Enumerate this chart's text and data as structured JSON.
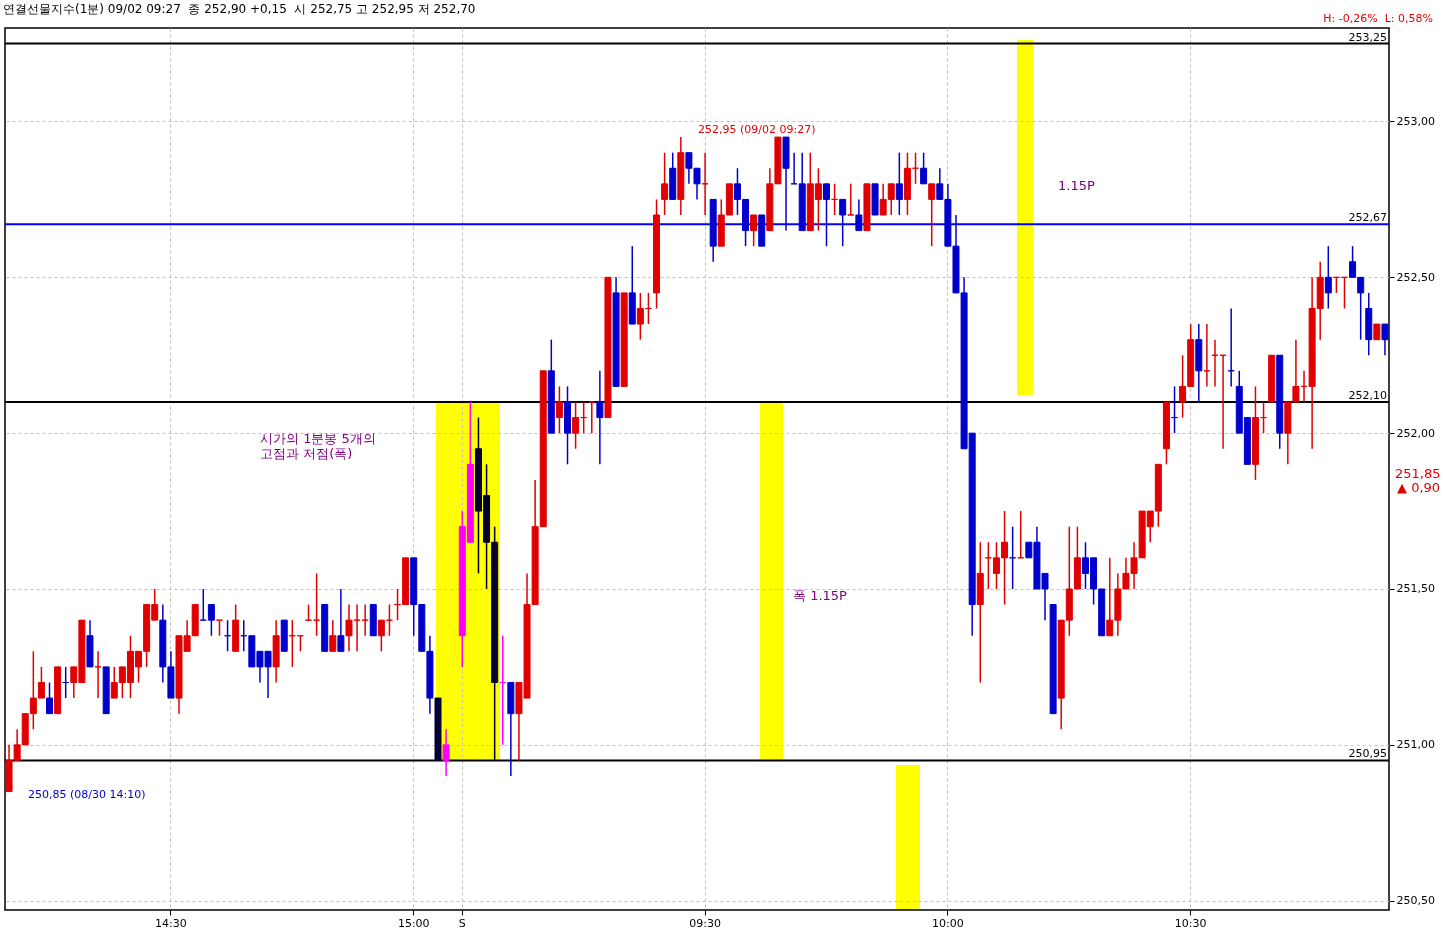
{
  "chart_data": {
    "type": "candlestick",
    "title": "연결선물지수(1분) 09/02 09:27  종 252,90 +0,15  시 252,75 고 252,95 저 252,70",
    "subtitle": "H: -0,26%  L: 0,58%",
    "categories": [
      null,
      null,
      null,
      null,
      null,
      null,
      null,
      null,
      null,
      null,
      null,
      null,
      null,
      null,
      null,
      null,
      null,
      null,
      null,
      null,
      "14:30",
      null,
      null,
      null,
      null,
      null,
      null,
      null,
      null,
      null,
      null,
      null,
      null,
      null,
      null,
      null,
      null,
      null,
      null,
      null,
      null,
      null,
      null,
      null,
      null,
      null,
      null,
      null,
      null,
      null,
      "15:00",
      null,
      null,
      null,
      null,
      null,
      "S",
      null,
      null,
      null,
      null,
      null,
      null,
      null,
      null,
      null,
      null,
      null,
      null,
      null,
      null,
      null,
      null,
      null,
      null,
      null,
      null,
      null,
      null,
      null,
      null,
      null,
      null,
      null,
      null,
      null,
      "09:30",
      null,
      null,
      null,
      null,
      null,
      null,
      null,
      null,
      null,
      null,
      null,
      null,
      null,
      null,
      null,
      null,
      null,
      null,
      null,
      null,
      null,
      null,
      null,
      null,
      null,
      null,
      null,
      null,
      null,
      "10:00",
      null,
      null,
      null,
      null,
      null,
      null,
      null,
      null,
      null,
      null,
      null,
      null,
      null,
      null,
      null,
      null,
      null,
      null,
      null,
      null,
      null,
      null,
      null,
      null,
      null,
      null,
      null,
      null,
      null,
      "10:30",
      null,
      null,
      null,
      null,
      null,
      null,
      null,
      null,
      null,
      null,
      null,
      null,
      null,
      null,
      null,
      null,
      null,
      null,
      null,
      null,
      null,
      null,
      null,
      null
    ],
    "ohlc": [
      [
        250.85,
        251.0,
        250.85,
        250.95
      ],
      [
        250.95,
        251.05,
        250.95,
        251.0
      ],
      [
        251.0,
        251.1,
        251.0,
        251.1
      ],
      [
        251.1,
        251.3,
        251.05,
        251.15
      ],
      [
        251.15,
        251.25,
        251.15,
        251.2
      ],
      [
        251.15,
        251.2,
        251.1,
        251.1
      ],
      [
        251.1,
        251.25,
        251.1,
        251.25
      ],
      [
        251.2,
        251.25,
        251.15,
        251.2
      ],
      [
        251.2,
        251.25,
        251.15,
        251.25
      ],
      [
        251.2,
        251.4,
        251.2,
        251.4
      ],
      [
        251.35,
        251.4,
        251.25,
        251.25
      ],
      [
        251.25,
        251.3,
        251.15,
        251.25
      ],
      [
        251.25,
        251.25,
        251.1,
        251.1
      ],
      [
        251.15,
        251.25,
        251.15,
        251.2
      ],
      [
        251.2,
        251.25,
        251.15,
        251.25
      ],
      [
        251.2,
        251.35,
        251.15,
        251.3
      ],
      [
        251.25,
        251.3,
        251.2,
        251.3
      ],
      [
        251.3,
        251.45,
        251.25,
        251.45
      ],
      [
        251.4,
        251.5,
        251.4,
        251.45
      ],
      [
        251.4,
        251.45,
        251.2,
        251.25
      ],
      [
        251.25,
        251.3,
        251.15,
        251.15
      ],
      [
        251.15,
        251.35,
        251.1,
        251.35
      ],
      [
        251.3,
        251.4,
        251.3,
        251.35
      ],
      [
        251.35,
        251.45,
        251.35,
        251.45
      ],
      [
        251.4,
        251.5,
        251.4,
        251.4
      ],
      [
        251.45,
        251.45,
        251.35,
        251.4
      ],
      [
        251.4,
        251.4,
        251.35,
        251.4
      ],
      [
        251.35,
        251.4,
        251.3,
        251.35
      ],
      [
        251.3,
        251.45,
        251.3,
        251.4
      ],
      [
        251.35,
        251.4,
        251.3,
        251.35
      ],
      [
        251.35,
        251.35,
        251.25,
        251.25
      ],
      [
        251.3,
        251.3,
        251.2,
        251.25
      ],
      [
        251.3,
        251.3,
        251.15,
        251.25
      ],
      [
        251.25,
        251.4,
        251.2,
        251.35
      ],
      [
        251.4,
        251.4,
        251.3,
        251.3
      ],
      [
        251.35,
        251.4,
        251.25,
        251.35
      ],
      [
        251.35,
        251.35,
        251.3,
        251.35
      ],
      [
        251.4,
        251.45,
        251.4,
        251.4
      ],
      [
        251.4,
        251.55,
        251.35,
        251.4
      ],
      [
        251.45,
        251.45,
        251.3,
        251.3
      ],
      [
        251.3,
        251.4,
        251.3,
        251.35
      ],
      [
        251.35,
        251.5,
        251.3,
        251.3
      ],
      [
        251.35,
        251.45,
        251.3,
        251.4
      ],
      [
        251.4,
        251.45,
        251.3,
        251.4
      ],
      [
        251.4,
        251.45,
        251.35,
        251.4
      ],
      [
        251.45,
        251.45,
        251.35,
        251.35
      ],
      [
        251.35,
        251.4,
        251.3,
        251.4
      ],
      [
        251.4,
        251.45,
        251.35,
        251.4
      ],
      [
        251.45,
        251.5,
        251.4,
        251.45
      ],
      [
        251.45,
        251.6,
        251.45,
        251.6
      ],
      [
        251.6,
        251.6,
        251.35,
        251.45
      ],
      [
        251.45,
        251.45,
        251.3,
        251.3
      ],
      [
        251.3,
        251.35,
        251.1,
        251.15
      ],
      [
        251.15,
        251.15,
        250.95,
        250.95
      ],
      [
        250.95,
        251.05,
        250.9,
        251.0
      ],
      null,
      [
        251.35,
        251.75,
        251.25,
        251.7
      ],
      [
        251.65,
        252.1,
        251.65,
        251.9
      ],
      [
        251.95,
        252.05,
        251.55,
        251.75
      ],
      [
        251.8,
        251.9,
        251.5,
        251.65
      ],
      [
        251.65,
        251.7,
        250.95,
        251.2
      ],
      [
        251.2,
        251.35,
        251.0,
        251.2
      ],
      [
        251.2,
        251.2,
        250.9,
        251.1
      ],
      [
        251.1,
        251.2,
        250.95,
        251.2
      ],
      [
        251.15,
        251.55,
        251.15,
        251.45
      ],
      [
        251.45,
        251.85,
        251.45,
        251.7
      ],
      [
        251.7,
        252.2,
        251.7,
        252.2
      ],
      [
        252.2,
        252.3,
        252.0,
        252.0
      ],
      [
        252.05,
        252.15,
        252.0,
        252.1
      ],
      [
        252.1,
        252.15,
        251.9,
        252.0
      ],
      [
        252.0,
        252.1,
        251.95,
        252.05
      ],
      [
        252.05,
        252.1,
        252.0,
        252.05
      ],
      [
        252.1,
        252.1,
        252.0,
        252.1
      ],
      [
        252.1,
        252.2,
        251.9,
        252.05
      ],
      [
        252.05,
        252.5,
        252.05,
        252.5
      ],
      [
        252.45,
        252.5,
        252.15,
        252.15
      ],
      [
        252.15,
        252.45,
        252.15,
        252.45
      ],
      [
        252.45,
        252.6,
        252.35,
        252.35
      ],
      [
        252.35,
        252.45,
        252.3,
        252.4
      ],
      [
        252.4,
        252.45,
        252.35,
        252.4
      ],
      [
        252.45,
        252.75,
        252.4,
        252.7
      ],
      [
        252.75,
        252.9,
        252.7,
        252.8
      ],
      [
        252.85,
        252.9,
        252.75,
        252.75
      ],
      [
        252.75,
        252.95,
        252.7,
        252.9
      ],
      [
        252.9,
        252.9,
        252.8,
        252.85
      ],
      [
        252.85,
        252.85,
        252.75,
        252.8
      ],
      [
        252.8,
        252.9,
        252.7,
        252.8
      ],
      [
        252.75,
        252.75,
        252.55,
        252.6
      ],
      [
        252.6,
        252.75,
        252.6,
        252.7
      ],
      [
        252.7,
        252.8,
        252.7,
        252.8
      ],
      [
        252.8,
        252.85,
        252.7,
        252.75
      ],
      [
        252.75,
        252.75,
        252.6,
        252.65
      ],
      [
        252.65,
        252.7,
        252.6,
        252.7
      ],
      [
        252.7,
        252.7,
        252.6,
        252.6
      ],
      [
        252.65,
        252.85,
        252.65,
        252.8
      ],
      [
        252.8,
        252.95,
        252.8,
        252.95
      ],
      [
        252.95,
        252.95,
        252.65,
        252.85
      ],
      [
        252.8,
        252.9,
        252.8,
        252.8
      ],
      [
        252.8,
        252.9,
        252.65,
        252.65
      ],
      [
        252.65,
        252.9,
        252.65,
        252.8
      ],
      [
        252.75,
        252.85,
        252.65,
        252.8
      ],
      [
        252.8,
        252.8,
        252.6,
        252.75
      ],
      [
        252.75,
        252.8,
        252.7,
        252.75
      ],
      [
        252.75,
        252.75,
        252.6,
        252.7
      ],
      [
        252.7,
        252.8,
        252.7,
        252.7
      ],
      [
        252.7,
        252.75,
        252.65,
        252.65
      ],
      [
        252.65,
        252.8,
        252.65,
        252.8
      ],
      [
        252.8,
        252.8,
        252.7,
        252.7
      ],
      [
        252.7,
        252.8,
        252.7,
        252.75
      ],
      [
        252.75,
        252.8,
        252.7,
        252.8
      ],
      [
        252.8,
        252.9,
        252.7,
        252.75
      ],
      [
        252.75,
        252.9,
        252.7,
        252.85
      ],
      [
        252.85,
        252.9,
        252.8,
        252.85
      ],
      [
        252.85,
        252.9,
        252.8,
        252.8
      ],
      [
        252.75,
        252.8,
        252.6,
        252.8
      ],
      [
        252.8,
        252.85,
        252.75,
        252.75
      ],
      [
        252.75,
        252.8,
        252.6,
        252.6
      ],
      [
        252.6,
        252.7,
        252.45,
        252.45
      ],
      [
        252.45,
        252.5,
        251.95,
        251.95
      ],
      [
        252.0,
        252.0,
        251.35,
        251.45
      ],
      [
        251.45,
        251.65,
        251.2,
        251.55
      ],
      [
        251.6,
        251.65,
        251.5,
        251.6
      ],
      [
        251.55,
        251.65,
        251.5,
        251.6
      ],
      [
        251.6,
        251.75,
        251.45,
        251.65
      ],
      [
        251.6,
        251.7,
        251.5,
        251.6
      ],
      [
        251.6,
        251.75,
        251.6,
        251.6
      ],
      [
        251.65,
        251.65,
        251.6,
        251.6
      ],
      [
        251.65,
        251.7,
        251.5,
        251.5
      ],
      [
        251.55,
        251.55,
        251.4,
        251.5
      ],
      [
        251.45,
        251.45,
        251.1,
        251.1
      ],
      [
        251.15,
        251.4,
        251.05,
        251.4
      ],
      [
        251.4,
        251.7,
        251.35,
        251.5
      ],
      [
        251.5,
        251.7,
        251.5,
        251.6
      ],
      [
        251.6,
        251.65,
        251.5,
        251.55
      ],
      [
        251.6,
        251.6,
        251.45,
        251.5
      ],
      [
        251.5,
        251.5,
        251.35,
        251.35
      ],
      [
        251.35,
        251.6,
        251.35,
        251.4
      ],
      [
        251.4,
        251.55,
        251.35,
        251.5
      ],
      [
        251.5,
        251.6,
        251.5,
        251.55
      ],
      [
        251.55,
        251.65,
        251.5,
        251.6
      ],
      [
        251.6,
        251.75,
        251.6,
        251.75
      ],
      [
        251.7,
        251.75,
        251.65,
        251.75
      ],
      [
        251.75,
        251.9,
        251.7,
        251.9
      ],
      [
        251.95,
        252.1,
        251.9,
        252.1
      ],
      [
        252.05,
        252.15,
        252.0,
        252.05
      ],
      [
        252.1,
        252.25,
        252.05,
        252.15
      ],
      [
        252.15,
        252.35,
        252.15,
        252.3
      ],
      [
        252.3,
        252.35,
        252.1,
        252.2
      ],
      [
        252.2,
        252.35,
        252.15,
        252.2
      ],
      [
        252.25,
        252.3,
        252.15,
        252.25
      ],
      [
        252.25,
        252.25,
        251.95,
        252.25
      ],
      [
        252.2,
        252.4,
        252.15,
        252.2
      ],
      [
        252.15,
        252.2,
        252.0,
        252.0
      ],
      [
        252.05,
        252.05,
        251.9,
        251.9
      ],
      [
        251.9,
        252.15,
        251.85,
        252.05
      ],
      [
        252.05,
        252.1,
        252.0,
        252.05
      ],
      [
        252.1,
        252.25,
        252.1,
        252.25
      ],
      [
        252.25,
        252.25,
        251.95,
        252.0
      ],
      [
        252.0,
        252.1,
        251.9,
        252.1
      ],
      [
        252.1,
        252.3,
        252.1,
        252.15
      ],
      [
        252.15,
        252.2,
        252.1,
        252.15
      ],
      [
        252.15,
        252.5,
        251.95,
        252.4
      ],
      [
        252.4,
        252.55,
        252.3,
        252.5
      ],
      [
        252.5,
        252.6,
        252.4,
        252.45
      ],
      [
        252.5,
        252.5,
        252.45,
        252.5
      ],
      [
        252.5,
        252.5,
        252.4,
        252.5
      ],
      [
        252.55,
        252.6,
        252.5,
        252.5
      ],
      [
        252.5,
        252.5,
        252.3,
        252.45
      ],
      [
        252.4,
        252.45,
        252.25,
        252.3
      ],
      [
        252.3,
        252.35,
        252.3,
        252.35
      ],
      [
        252.35,
        252.35,
        252.25,
        252.3
      ]
    ],
    "colors": [
      "#e00000",
      "#e00000",
      "#e00000",
      "#e00000",
      "#e00000",
      "#0000cc",
      "#e00000",
      "#0000cc",
      "#e00000",
      "#e00000",
      "#0000cc",
      "#e00000",
      "#0000cc",
      "#e00000",
      "#e00000",
      "#e00000",
      "#e00000",
      "#e00000",
      "#e00000",
      "#0000cc",
      "#0000cc",
      "#e00000",
      "#e00000",
      "#e00000",
      "#0000cc",
      "#0000cc",
      "#e00000",
      "#0000cc",
      "#e00000",
      "#0000cc",
      "#0000cc",
      "#0000cc",
      "#0000cc",
      "#e00000",
      "#0000cc",
      "#e00000",
      "#e00000",
      "#e00000",
      "#e00000",
      "#0000cc",
      "#e00000",
      "#0000cc",
      "#e00000",
      "#e00000",
      "#e00000",
      "#0000cc",
      "#e00000",
      "#e00000",
      "#e00000",
      "#e00000",
      "#0000cc",
      "#0000cc",
      "#0000cc",
      "#000033",
      "#ff00ff",
      null,
      "#ff00ff",
      "#ff00ff",
      "#000033",
      "#000033",
      "#000033",
      "#ff00ff",
      "#0000cc",
      "#e00000",
      "#e00000",
      "#e00000",
      "#e00000",
      "#0000cc",
      "#e00000",
      "#0000cc",
      "#e00000",
      "#e00000",
      "#e00000",
      "#0000cc",
      "#e00000",
      "#0000cc",
      "#e00000",
      "#0000cc",
      "#e00000",
      "#e00000",
      "#e00000",
      "#e00000",
      "#0000cc",
      "#e00000",
      "#0000cc",
      "#0000cc",
      "#e00000",
      "#0000cc",
      "#e00000",
      "#e00000",
      "#0000cc",
      "#0000cc",
      "#e00000",
      "#0000cc",
      "#e00000",
      "#e00000",
      "#0000cc",
      "#0000cc",
      "#0000cc",
      "#e00000",
      "#e00000",
      "#0000cc",
      "#e00000",
      "#0000cc",
      "#e00000",
      "#0000cc",
      "#e00000",
      "#0000cc",
      "#e00000",
      "#e00000",
      "#0000cc",
      "#e00000",
      "#e00000",
      "#0000cc",
      "#e00000",
      "#0000cc",
      "#0000cc",
      "#0000cc",
      "#0000cc",
      "#0000cc",
      "#e00000",
      "#e00000",
      "#e00000",
      "#e00000",
      "#0000cc",
      "#e00000",
      "#0000cc",
      "#0000cc",
      "#0000cc",
      "#0000cc",
      "#e00000",
      "#e00000",
      "#e00000",
      "#0000cc",
      "#0000cc",
      "#0000cc",
      "#e00000",
      "#e00000",
      "#e00000",
      "#e00000",
      "#e00000",
      "#e00000",
      "#e00000",
      "#e00000",
      "#0000cc",
      "#e00000",
      "#e00000",
      "#0000cc",
      "#e00000",
      "#e00000",
      "#e00000",
      "#0000cc",
      "#0000cc",
      "#0000cc",
      "#e00000",
      "#e00000",
      "#e00000",
      "#0000cc",
      "#e00000",
      "#e00000",
      "#e00000",
      "#e00000",
      "#e00000",
      "#0000cc",
      "#e00000",
      "#e00000",
      "#0000cc",
      "#0000cc",
      "#0000cc",
      "#e00000",
      "#0000cc"
    ],
    "ylim": [
      250.47,
      253.3
    ],
    "yticks": [
      {
        "value": 250.5,
        "label": "250,50"
      },
      {
        "value": 251,
        "label": "251,00"
      },
      {
        "value": 251.5,
        "label": "251,50"
      },
      {
        "value": 252,
        "label": "252,00"
      },
      {
        "value": 252.5,
        "label": "252,50"
      },
      {
        "value": 253,
        "label": "253,00"
      }
    ],
    "ref_lines": [
      {
        "axis": "y",
        "value": 253.25,
        "label": "253,25",
        "color": "#000000"
      },
      {
        "axis": "y",
        "value": 252.67,
        "label": "252,67",
        "color": "#0000ff"
      },
      {
        "axis": "y",
        "value": 252.1,
        "label": "252,10",
        "color": "#000000"
      },
      {
        "axis": "y",
        "value": 250.95,
        "label": "250,95",
        "color": "#000000"
      }
    ],
    "annotations": [
      "252,95 (09/02 09:27)",
      "250,85 (08/30 14:10)",
      "시가의 1분봉 5개의\n고점과 저점(폭)",
      "폭 1.15P",
      "1.15P",
      "251,85",
      "▲ 0,90"
    ],
    "grid": true
  }
}
